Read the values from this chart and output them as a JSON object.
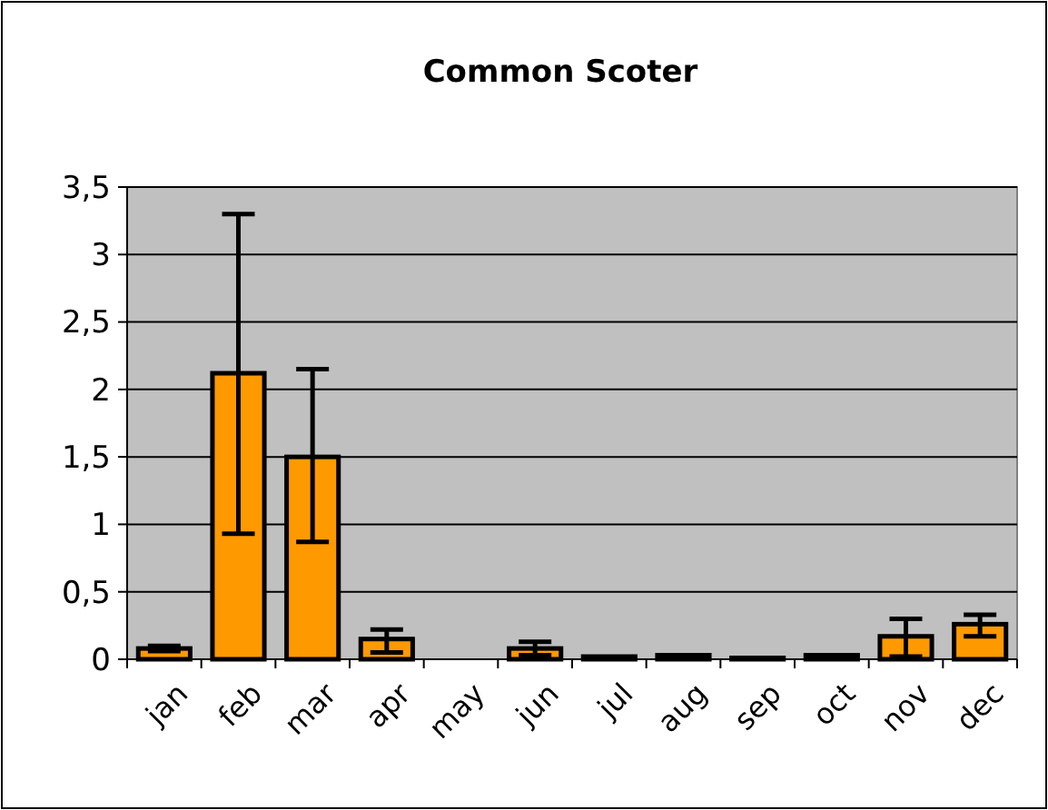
{
  "chart_data": {
    "type": "bar",
    "title": "Common Scoter",
    "categories": [
      "jan",
      "feb",
      "mar",
      "apr",
      "may",
      "jun",
      "jul",
      "aug",
      "sep",
      "oct",
      "nov",
      "dec"
    ],
    "values": [
      0.08,
      2.12,
      1.5,
      0.15,
      0,
      0.08,
      0.02,
      0.03,
      0.01,
      0.03,
      0.17,
      0.26
    ],
    "errors": [
      [
        0.06,
        0.1
      ],
      [
        0.93,
        3.3
      ],
      [
        0.87,
        2.15
      ],
      [
        0.05,
        0.22
      ],
      null,
      [
        0.03,
        0.13
      ],
      null,
      null,
      null,
      null,
      [
        0.02,
        0.3
      ],
      [
        0.17,
        0.33
      ]
    ],
    "color": "#ff9900",
    "ylim": [
      0,
      3.5
    ],
    "yticks": [
      0,
      {
        "value": 0.5,
        "label": "0,5"
      },
      1,
      {
        "value": 1.5,
        "label": "1,5"
      },
      2,
      {
        "value": 2.5,
        "label": "2,5"
      },
      3,
      {
        "value": 3.5,
        "label": "3,5"
      }
    ],
    "grid": "y"
  }
}
